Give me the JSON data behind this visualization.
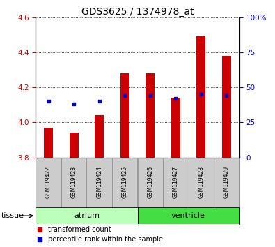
{
  "title": "GDS3625 / 1374978_at",
  "samples": [
    "GSM119422",
    "GSM119423",
    "GSM119424",
    "GSM119425",
    "GSM119426",
    "GSM119427",
    "GSM119428",
    "GSM119429"
  ],
  "transformed_count": [
    3.97,
    3.94,
    4.04,
    4.28,
    4.28,
    4.14,
    4.49,
    4.38
  ],
  "percentile_rank": [
    40,
    38,
    40,
    44,
    44,
    42,
    45,
    44
  ],
  "ylim_left": [
    3.8,
    4.6
  ],
  "ylim_right": [
    0,
    100
  ],
  "yticks_left": [
    3.8,
    4.0,
    4.2,
    4.4,
    4.6
  ],
  "yticks_right": [
    0,
    25,
    50,
    75,
    100
  ],
  "yticklabels_right": [
    "0",
    "25",
    "50",
    "75",
    "100%"
  ],
  "tissue_groups": [
    {
      "label": "atrium",
      "start": 0,
      "end": 4,
      "color": "#bbffbb"
    },
    {
      "label": "ventricle",
      "start": 4,
      "end": 8,
      "color": "#44dd44"
    }
  ],
  "bar_color_red": "#cc0000",
  "marker_color_blue": "#0000cc",
  "bar_bottom": 3.8,
  "legend_red_label": "transformed count",
  "legend_blue_label": "percentile rank within the sample",
  "tissue_label": "tissue",
  "left_tick_color": "#cc0000",
  "right_tick_color": "#0000cc",
  "bar_width": 0.35
}
